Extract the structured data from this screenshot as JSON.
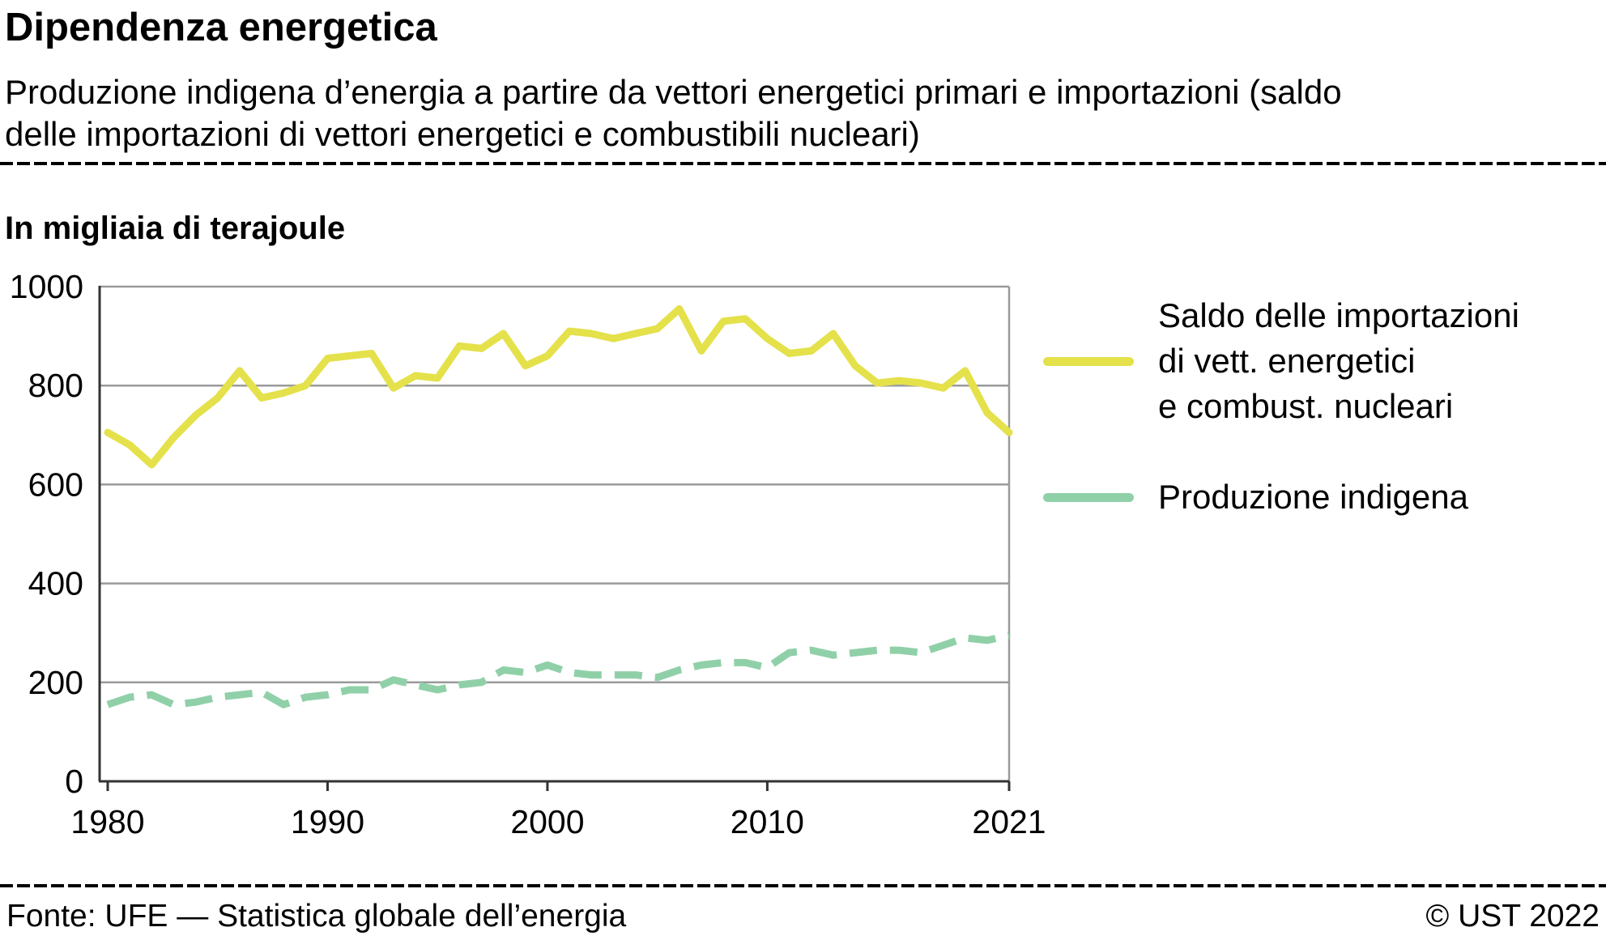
{
  "header": {
    "title": "Dipendenza energetica",
    "subtitle": "Produzione indigena d’energia a partire da vettori energetici primari e importazioni (saldo delle importazioni di vettori energetici e combustibili nucleari)"
  },
  "chart": {
    "unit_label": "In migliaia di terajoule"
  },
  "chart_data": {
    "type": "line",
    "title": "Dipendenza energetica",
    "ylabel": "In migliaia di terajoule",
    "xlabel": "",
    "ylim": [
      0,
      1000
    ],
    "yticks": [
      0,
      200,
      400,
      600,
      800,
      1000
    ],
    "xticks": [
      1980,
      1990,
      2000,
      2010,
      2021
    ],
    "grid": true,
    "legend_position": "right",
    "x": [
      1980,
      1981,
      1982,
      1983,
      1984,
      1985,
      1986,
      1987,
      1988,
      1989,
      1990,
      1991,
      1992,
      1993,
      1994,
      1995,
      1996,
      1997,
      1998,
      1999,
      2000,
      2001,
      2002,
      2003,
      2004,
      2005,
      2006,
      2007,
      2008,
      2009,
      2010,
      2011,
      2012,
      2013,
      2014,
      2015,
      2016,
      2017,
      2018,
      2019,
      2020,
      2021
    ],
    "series": [
      {
        "name": "Saldo delle importazioni di vett. energetici e combust. nucleari",
        "color": "#e4e14b",
        "style": "solid",
        "values": [
          705,
          680,
          640,
          695,
          740,
          775,
          830,
          775,
          785,
          800,
          855,
          860,
          865,
          795,
          820,
          815,
          880,
          875,
          905,
          840,
          860,
          910,
          905,
          895,
          905,
          915,
          955,
          870,
          930,
          935,
          895,
          865,
          870,
          905,
          840,
          805,
          810,
          805,
          795,
          830,
          745,
          705
        ]
      },
      {
        "name": "Produzione indigena",
        "color": "#90d0a8",
        "style": "dashed",
        "values": [
          155,
          170,
          175,
          155,
          160,
          170,
          175,
          180,
          155,
          170,
          175,
          185,
          185,
          205,
          195,
          185,
          195,
          200,
          225,
          220,
          235,
          220,
          215,
          215,
          215,
          210,
          225,
          235,
          240,
          240,
          230,
          260,
          265,
          255,
          260,
          265,
          265,
          260,
          275,
          290,
          285,
          295
        ]
      }
    ]
  },
  "legend": {
    "items": [
      {
        "label_lines": [
          "Saldo delle importazioni",
          "di vett. energetici",
          "e combust. nucleari"
        ],
        "color": "#e4e14b",
        "dashed": false
      },
      {
        "label_lines": [
          "Produzione indigena"
        ],
        "color": "#90d0a8",
        "dashed": true
      }
    ]
  },
  "footer": {
    "source": "Fonte: UFE — Statistica globale dell’energia",
    "copyright": "© UST 2022"
  }
}
